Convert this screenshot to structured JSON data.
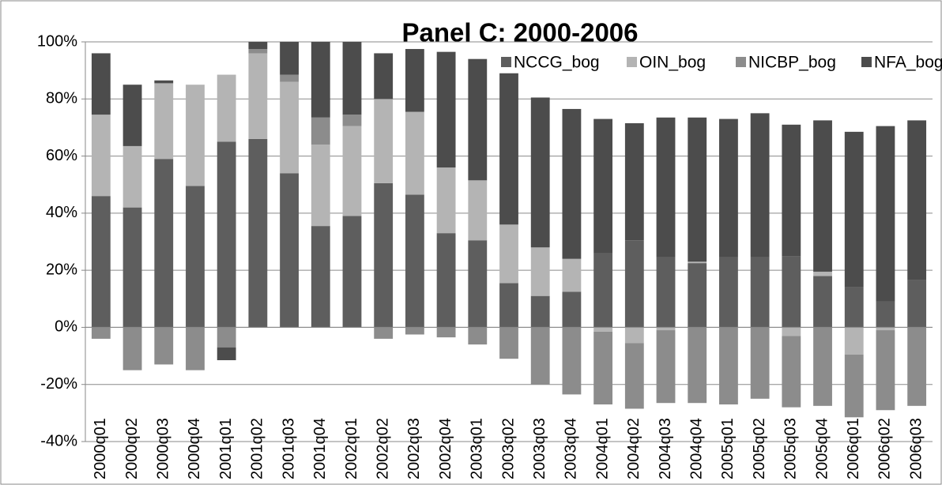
{
  "chart_data": {
    "type": "stacked-bar",
    "title": "Panel C: 2000-2006",
    "categories": [
      "2000q01",
      "2000q02",
      "2000q03",
      "2000q04",
      "2001q01",
      "2001q02",
      "2001q03",
      "2001q04",
      "2002q01",
      "2002q02",
      "2002q03",
      "2002q04",
      "2003q01",
      "2003q02",
      "2003q03",
      "2003q04",
      "2004q01",
      "2004q02",
      "2004q03",
      "2004q04",
      "2005q01",
      "2005q02",
      "2005q03",
      "2005q04",
      "2006q01",
      "2006q02",
      "2006q03"
    ],
    "series": [
      {
        "name": "NCCG_bog",
        "color": "#5e5e5e",
        "values": [
          46,
          42,
          59,
          49.5,
          65,
          66,
          54,
          35.5,
          39,
          50.5,
          46.5,
          33,
          30.5,
          15.5,
          11,
          12.5,
          26,
          30.5,
          24.5,
          22.5,
          24.5,
          24.5,
          25,
          18,
          14,
          9,
          16.5
        ]
      },
      {
        "name": "OIN_bog",
        "color": "#b4b4b4",
        "values": [
          28.5,
          21.5,
          26.5,
          35.5,
          23.5,
          30,
          32,
          28.5,
          31.5,
          29.5,
          29,
          23,
          21,
          20.5,
          17,
          11.5,
          -1.5,
          -5.5,
          -1,
          0.5,
          0,
          0,
          -3,
          1.5,
          -9.5,
          -1,
          0
        ]
      },
      {
        "name": "NICBP_bog",
        "color": "#8c8c8c",
        "values": [
          -4,
          -15,
          -13,
          -15,
          -7,
          1.5,
          2.5,
          9.5,
          4,
          -4,
          -2.5,
          -3.5,
          -6,
          -11,
          -20,
          -23.5,
          -25.5,
          -23,
          -25.5,
          -26.5,
          -27,
          -25,
          -25,
          -27.5,
          -22,
          -28,
          -27.5
        ]
      },
      {
        "name": "NFA_bog",
        "color": "#4c4c4c",
        "values": [
          21.5,
          21.5,
          1,
          0,
          -4.5,
          2.5,
          11.5,
          26.5,
          25.5,
          16,
          22,
          40.5,
          42.5,
          53,
          52.5,
          52.5,
          47,
          41,
          49,
          50.5,
          48.5,
          50.5,
          46,
          53,
          54.5,
          61.5,
          56
        ]
      }
    ],
    "ylim": [
      -40,
      100
    ],
    "yticks": [
      {
        "value": -40,
        "label": "-40%"
      },
      {
        "value": -20,
        "label": "-20%"
      },
      {
        "value": 0,
        "label": "0%"
      },
      {
        "value": 20,
        "label": "20%"
      },
      {
        "value": 40,
        "label": "40%"
      },
      {
        "value": 60,
        "label": "60%"
      },
      {
        "value": 80,
        "label": "80%"
      },
      {
        "value": 100,
        "label": "100%"
      }
    ],
    "grid": true
  }
}
